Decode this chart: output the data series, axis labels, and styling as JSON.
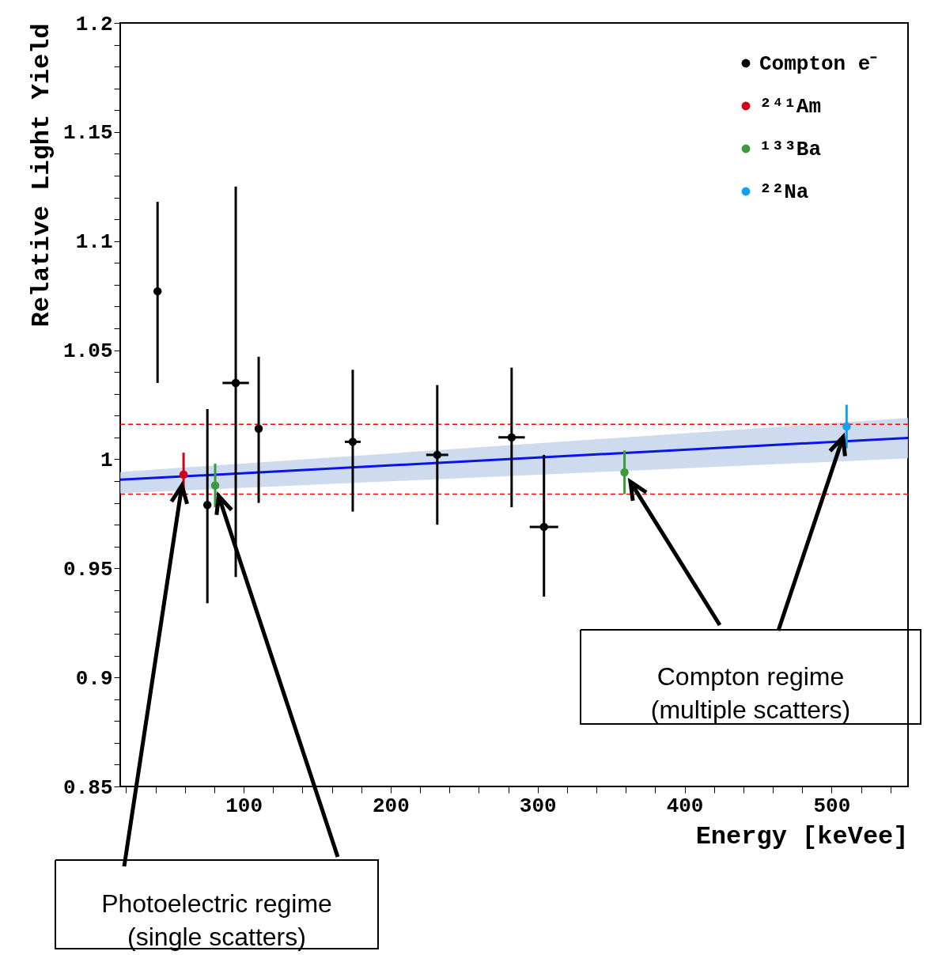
{
  "chart_data": {
    "type": "scatter",
    "xlabel": "Energy [keVee]",
    "ylabel": "Relative Light Yield",
    "xlim": [
      16,
      552
    ],
    "ylim": [
      0.85,
      1.2
    ],
    "xticks": [
      {
        "value": 20,
        "label": null
      },
      {
        "value": 40,
        "label": null
      },
      {
        "value": 60,
        "label": null
      },
      {
        "value": 80,
        "label": null
      },
      100,
      {
        "value": 120,
        "label": null
      },
      {
        "value": 140,
        "label": null
      },
      {
        "value": 160,
        "label": null
      },
      {
        "value": 180,
        "label": null
      },
      200,
      {
        "value": 220,
        "label": null
      },
      {
        "value": 240,
        "label": null
      },
      {
        "value": 260,
        "label": null
      },
      {
        "value": 280,
        "label": null
      },
      300,
      {
        "value": 320,
        "label": null
      },
      {
        "value": 340,
        "label": null
      },
      {
        "value": 360,
        "label": null
      },
      {
        "value": 380,
        "label": null
      },
      400,
      {
        "value": 420,
        "label": null
      },
      {
        "value": 440,
        "label": null
      },
      {
        "value": 460,
        "label": null
      },
      {
        "value": 480,
        "label": null
      },
      500,
      {
        "value": 520,
        "label": null
      },
      {
        "value": 540,
        "label": null
      }
    ],
    "yticks": [
      0.85,
      {
        "value": 0.86,
        "label": null
      },
      {
        "value": 0.87,
        "label": null
      },
      {
        "value": 0.88,
        "label": null
      },
      {
        "value": 0.89,
        "label": null
      },
      0.9,
      {
        "value": 0.91,
        "label": null
      },
      {
        "value": 0.92,
        "label": null
      },
      {
        "value": 0.93,
        "label": null
      },
      {
        "value": 0.94,
        "label": null
      },
      0.95,
      {
        "value": 0.96,
        "label": null
      },
      {
        "value": 0.97,
        "label": null
      },
      {
        "value": 0.98,
        "label": null
      },
      {
        "value": 0.99,
        "label": null
      },
      1,
      {
        "value": 1.01,
        "label": null
      },
      {
        "value": 1.02,
        "label": null
      },
      {
        "value": 1.03,
        "label": null
      },
      {
        "value": 1.04,
        "label": null
      },
      1.05,
      {
        "value": 1.06,
        "label": null
      },
      {
        "value": 1.07,
        "label": null
      },
      {
        "value": 1.08,
        "label": null
      },
      {
        "value": 1.09,
        "label": null
      },
      1.1,
      {
        "value": 1.11,
        "label": null
      },
      {
        "value": 1.12,
        "label": null
      },
      {
        "value": 1.13,
        "label": null
      },
      {
        "value": 1.14,
        "label": null
      },
      1.15,
      {
        "value": 1.16,
        "label": null
      },
      {
        "value": 1.17,
        "label": null
      },
      {
        "value": 1.18,
        "label": null
      },
      {
        "value": 1.19,
        "label": null
      },
      1.2
    ],
    "grid": false,
    "legend": "top right",
    "marker": "circle",
    "series": [
      {
        "name": "Compton e⁻",
        "color": "#000000",
        "x": [
          41.4,
          75.3,
          94.6,
          110.2,
          174.2,
          231.7,
          282.3,
          304.3
        ],
        "values": [
          1.077,
          0.979,
          1.035,
          1.014,
          1.008,
          1.002,
          1.01,
          0.969
        ],
        "errors": [
          [
            1.035,
            1.118
          ],
          [
            0.934,
            1.023
          ],
          [
            0.946,
            1.125
          ],
          [
            0.98,
            1.047
          ],
          [
            0.976,
            1.041
          ],
          [
            0.97,
            1.034
          ],
          [
            0.978,
            1.042
          ],
          [
            0.937,
            1.002
          ]
        ],
        "xerrors": [
          null,
          null,
          9,
          null,
          5.4,
          7.5,
          9,
          9.7
        ]
      },
      {
        "name": "²⁴¹Am",
        "color": "#d0021b",
        "x": [
          59.1
        ],
        "values": [
          0.993
        ],
        "errors": [
          [
            0.983,
            1.003
          ]
        ]
      },
      {
        "name": "¹³³Ba",
        "color": "#3c9a3c",
        "x": [
          80.6,
          359.1
        ],
        "values": [
          0.988,
          0.994
        ],
        "errors": [
          [
            0.978,
            0.998
          ],
          [
            0.984,
            1.004
          ]
        ]
      },
      {
        "name": "²²Na",
        "color": "#12a0ee",
        "x": [
          510.2
        ],
        "values": [
          1.015
        ],
        "errors": [
          [
            1.005,
            1.025
          ]
        ]
      },
      {
        "type": "line",
        "marker": "none",
        "color": "#0a14e6",
        "x": [
          16,
          552
        ],
        "values": [
          0.9906,
          1.0098
        ],
        "lower": [
          0.9844,
          1.0004
        ],
        "upper": [
          0.9942,
          1.0189
        ]
      }
    ],
    "ref_lines": [
      {
        "axis": "y",
        "value": 1.016,
        "color": "#ff0000",
        "line_style": "dashed"
      },
      {
        "axis": "y",
        "value": 0.984,
        "color": "#ff0000",
        "line_style": "dashed"
      }
    ],
    "annotations": [
      "Photoelectric regime\n(single scatters)",
      "Compton regime\n(multiple scatters)"
    ]
  }
}
